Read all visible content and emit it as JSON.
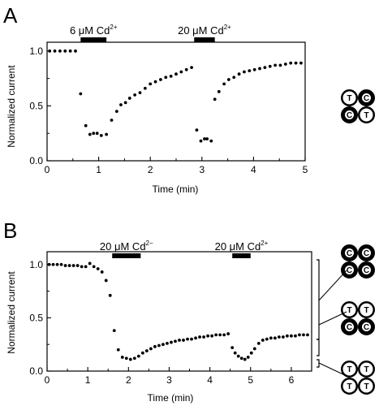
{
  "chart_data": [
    {
      "type": "scatter",
      "panel_label": "A",
      "xlabel": "Time (min)",
      "ylabel": "Normalized current",
      "xlim": [
        0,
        5
      ],
      "ylim": [
        0,
        1.08
      ],
      "xticks": [
        "0",
        "1",
        "2",
        "3",
        "4",
        "5"
      ],
      "yticks": [
        "0.0",
        "0.5",
        "1.0"
      ],
      "annotations": [
        {
          "text": "6 μM Cd",
          "sup": "2+",
          "x_start": 0.65,
          "x_end": 1.15
        },
        {
          "text": "20 μM Cd",
          "sup": "2+",
          "x_start": 2.85,
          "x_end": 3.25
        }
      ],
      "series": [
        {
          "x": [
            0.05,
            0.15,
            0.25,
            0.35,
            0.45,
            0.55,
            0.65,
            0.75,
            0.83,
            0.9,
            0.97,
            1.05,
            1.15,
            1.25,
            1.35,
            1.43,
            1.52,
            1.6,
            1.7,
            1.8,
            1.9,
            2.0,
            2.1,
            2.2,
            2.3,
            2.4,
            2.5,
            2.6,
            2.7,
            2.8,
            2.9,
            2.98,
            3.05,
            3.1,
            3.18,
            3.25,
            3.33,
            3.43,
            3.52,
            3.62,
            3.72,
            3.82,
            3.92,
            4.02,
            4.12,
            4.22,
            4.32,
            4.42,
            4.52,
            4.62,
            4.72,
            4.82,
            4.92
          ],
          "y": [
            1.0,
            1.0,
            1.0,
            1.0,
            1.0,
            1.0,
            0.61,
            0.32,
            0.24,
            0.25,
            0.25,
            0.23,
            0.24,
            0.37,
            0.45,
            0.51,
            0.53,
            0.57,
            0.6,
            0.62,
            0.66,
            0.7,
            0.72,
            0.74,
            0.76,
            0.77,
            0.79,
            0.81,
            0.83,
            0.85,
            0.28,
            0.18,
            0.2,
            0.2,
            0.18,
            0.56,
            0.63,
            0.7,
            0.74,
            0.76,
            0.79,
            0.81,
            0.82,
            0.83,
            0.84,
            0.85,
            0.86,
            0.87,
            0.87,
            0.88,
            0.89,
            0.89,
            0.89
          ]
        }
      ]
    },
    {
      "type": "scatter",
      "panel_label": "B",
      "xlabel": "Time (min)",
      "ylabel": "Normalized current",
      "xlim": [
        0,
        6.5
      ],
      "ylim": [
        0,
        1.12
      ],
      "xticks": [
        "0",
        "1",
        "2",
        "3",
        "4",
        "5",
        "6"
      ],
      "yticks": [
        "0.0",
        "0.5",
        "1.0"
      ],
      "annotations": [
        {
          "text": "20 μM Cd",
          "sup": "2−",
          "x_start": 1.6,
          "x_end": 2.3
        },
        {
          "text": "20 μM Cd",
          "sup": "2+",
          "x_start": 4.55,
          "x_end": 5.0
        }
      ],
      "series": [
        {
          "x": [
            0.05,
            0.15,
            0.25,
            0.35,
            0.45,
            0.55,
            0.65,
            0.75,
            0.85,
            0.95,
            1.05,
            1.15,
            1.25,
            1.35,
            1.45,
            1.55,
            1.65,
            1.75,
            1.85,
            1.95,
            2.05,
            2.15,
            2.25,
            2.35,
            2.45,
            2.55,
            2.65,
            2.75,
            2.85,
            2.95,
            3.05,
            3.15,
            3.25,
            3.35,
            3.45,
            3.55,
            3.65,
            3.75,
            3.85,
            3.95,
            4.05,
            4.15,
            4.25,
            4.35,
            4.45,
            4.55,
            4.62,
            4.7,
            4.78,
            4.86,
            4.94,
            5.02,
            5.1,
            5.2,
            5.3,
            5.4,
            5.5,
            5.6,
            5.7,
            5.8,
            5.9,
            6.0,
            6.1,
            6.2,
            6.3,
            6.4
          ],
          "y": [
            1.0,
            1.0,
            1.0,
            1.0,
            0.99,
            0.99,
            0.99,
            0.99,
            0.98,
            0.98,
            1.01,
            0.98,
            0.96,
            0.93,
            0.85,
            0.71,
            0.38,
            0.2,
            0.13,
            0.12,
            0.11,
            0.12,
            0.14,
            0.17,
            0.19,
            0.21,
            0.23,
            0.24,
            0.25,
            0.26,
            0.27,
            0.28,
            0.29,
            0.29,
            0.3,
            0.3,
            0.31,
            0.32,
            0.32,
            0.33,
            0.33,
            0.34,
            0.34,
            0.34,
            0.35,
            0.22,
            0.17,
            0.14,
            0.12,
            0.11,
            0.13,
            0.17,
            0.21,
            0.26,
            0.29,
            0.3,
            0.31,
            0.31,
            0.32,
            0.32,
            0.33,
            0.33,
            0.33,
            0.34,
            0.34,
            0.34
          ]
        }
      ]
    }
  ],
  "legend_a": {
    "subunits": [
      {
        "letter": "T",
        "style": "open"
      },
      {
        "letter": "C",
        "style": "filled"
      },
      {
        "letter": "C",
        "style": "filled"
      },
      {
        "letter": "T",
        "style": "open"
      }
    ]
  },
  "legend_b": [
    {
      "subunits": [
        {
          "letter": "C",
          "style": "filled"
        },
        {
          "letter": "C",
          "style": "filled"
        },
        {
          "letter": "C",
          "style": "filled"
        },
        {
          "letter": "C",
          "style": "filled"
        }
      ]
    },
    {
      "subunits": [
        {
          "letter": "T",
          "style": "open"
        },
        {
          "letter": "T",
          "style": "open"
        },
        {
          "letter": "C",
          "style": "filled"
        },
        {
          "letter": "C",
          "style": "filled"
        }
      ]
    },
    {
      "subunits": [
        {
          "letter": "T",
          "style": "open"
        },
        {
          "letter": "T",
          "style": "open"
        },
        {
          "letter": "T",
          "style": "open"
        },
        {
          "letter": "T",
          "style": "open"
        }
      ]
    }
  ],
  "colors": {
    "ink": "#000000",
    "paper": "#ffffff"
  }
}
